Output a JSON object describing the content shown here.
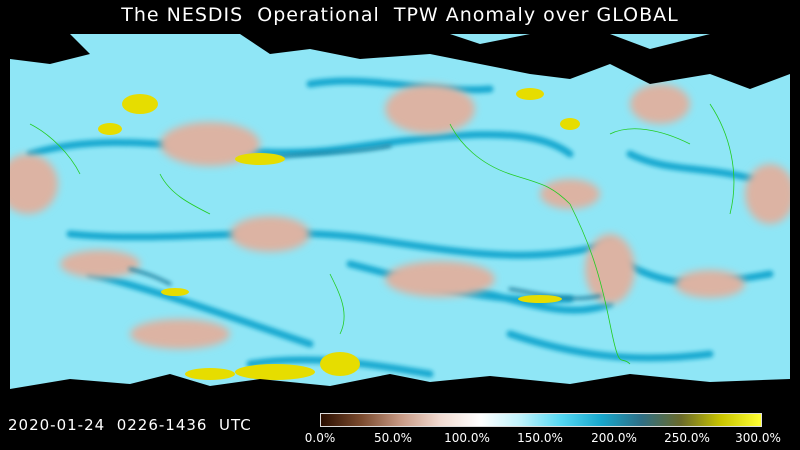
{
  "title": "The NESDIS  Operational  TPW Anomaly over GLOBAL",
  "timestamp": "2020-01-24  0226-1436  UTC",
  "colorbar": {
    "ticks": [
      "0.0%",
      "50.0%",
      "100.0%",
      "150.0%",
      "200.0%",
      "250.0%",
      "300.0%"
    ],
    "stops": [
      "#2a0e00",
      "#7a4a2e",
      "#c89a85",
      "#f2dcd3",
      "#ffffff",
      "#bff2fb",
      "#55d8f3",
      "#18a7cc",
      "#2e6f86",
      "#6a6a2a",
      "#c9c400",
      "#ffff33"
    ]
  },
  "colors": {
    "ocean_base": "#8fe6f6",
    "dry_anomaly": "#d9b2a2",
    "wet_anomaly": "#0ea1c9",
    "extreme_anomaly": "#e6dd00",
    "land_mask": "#000000",
    "coastline": "#22cc22"
  }
}
